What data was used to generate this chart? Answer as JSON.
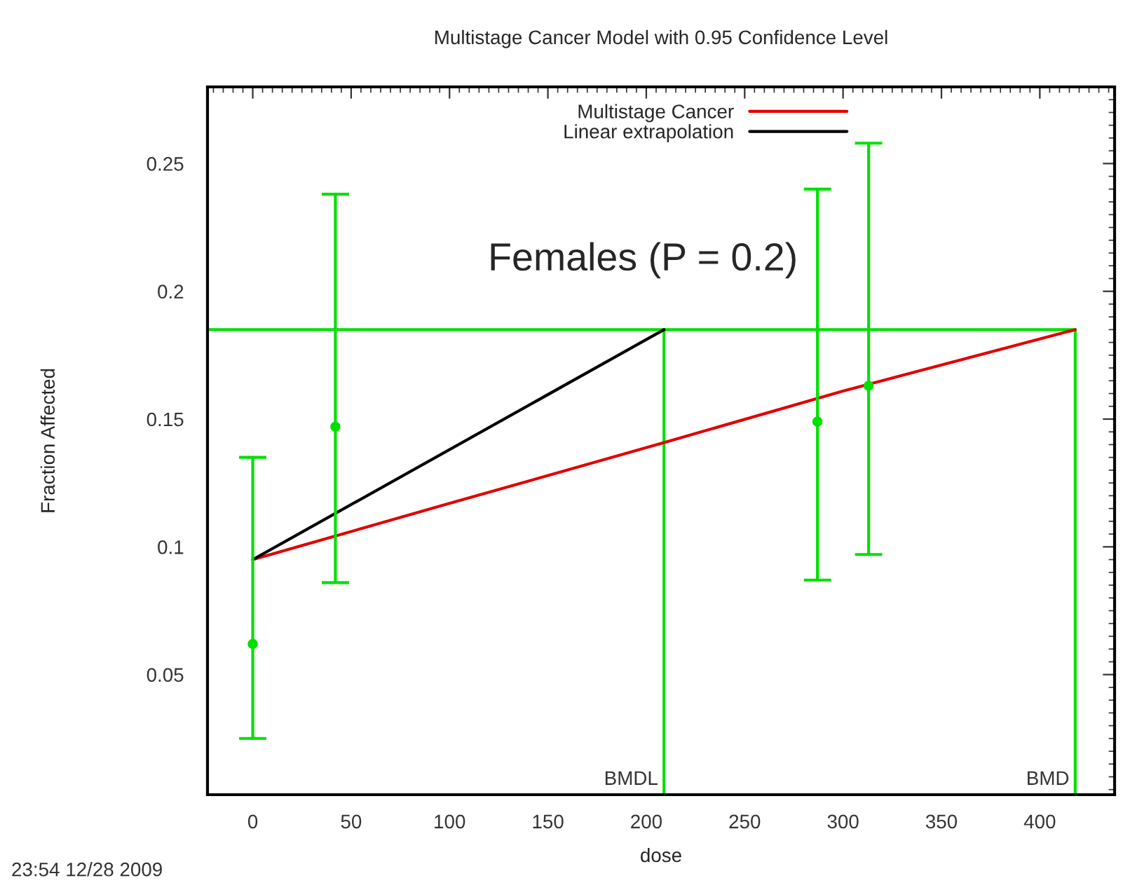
{
  "chart_data": {
    "type": "line",
    "title": "Multistage Cancer Model with 0.95 Confidence Level",
    "xlabel": "dose",
    "ylabel": "Fraction Affected",
    "annotations": [
      "Females (P = 0.2)",
      "23:54 12/28 2009"
    ],
    "series": [
      {
        "name": "Multistage Cancer",
        "color": "#e00000",
        "x": [
          0,
          100,
          210,
          300,
          418
        ],
        "values": [
          0.095,
          0.117,
          0.141,
          0.161,
          0.185
        ]
      },
      {
        "name": "Linear extrapolation",
        "color": "#000000",
        "x": [
          0,
          209
        ],
        "values": [
          0.095,
          0.185
        ]
      },
      {
        "type": "scatter",
        "color": "#00e000",
        "marker": "circle",
        "x": [
          0,
          42,
          287,
          313
        ],
        "values": [
          0.062,
          0.147,
          0.149,
          0.163
        ],
        "errors": [
          [
            0.025,
            0.135
          ],
          [
            0.086,
            0.238
          ],
          [
            0.087,
            0.24
          ],
          [
            0.097,
            0.258
          ]
        ]
      }
    ],
    "ref_lines": [
      {
        "axis": "y",
        "value": 0.185,
        "color": "#00e000"
      },
      {
        "axis": "x",
        "value": 209,
        "label": "BMDL",
        "color": "#00e000"
      },
      {
        "axis": "x",
        "value": 418,
        "label": "BMD",
        "color": "#00e000"
      }
    ],
    "xlim": [
      -23,
      438
    ],
    "ylim": [
      0.003,
      0.28
    ],
    "xticks": [
      0,
      50,
      100,
      150,
      200,
      250,
      300,
      350,
      400
    ],
    "yticks": [
      0.05,
      0.1,
      0.15,
      0.2,
      0.25
    ],
    "grid": false,
    "legend": "top right",
    "line_style": "solid"
  }
}
